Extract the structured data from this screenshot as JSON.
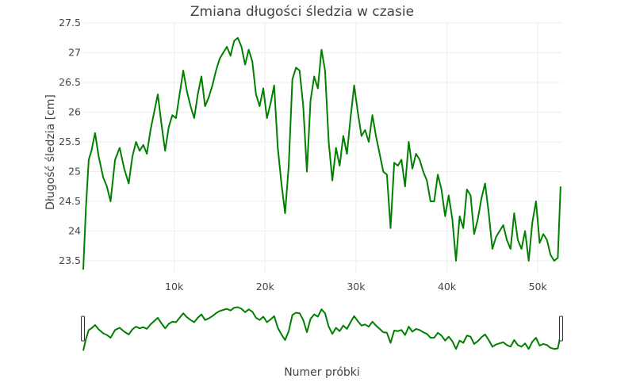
{
  "chart_data": {
    "type": "line",
    "title": "Zmiana długości śledzia w czasie",
    "xlabel": "Numer próbki",
    "ylabel": "Długość śledzia [cm]",
    "xlim": [
      0,
      52600
    ],
    "ylim": [
      23.3,
      27.5
    ],
    "x_ticks": [
      10000,
      20000,
      30000,
      40000,
      50000
    ],
    "x_tick_labels": [
      "10k",
      "20k",
      "30k",
      "40k",
      "50k"
    ],
    "y_ticks": [
      23.5,
      24,
      24.5,
      25,
      25.5,
      26,
      26.5,
      27,
      27.5
    ],
    "y_tick_labels": [
      "23.5",
      "24",
      "24.5",
      "25",
      "25.5",
      "26",
      "26.5",
      "27",
      "27.5"
    ],
    "grid": true,
    "range_slider": true,
    "line_color": "#008000",
    "series": [
      {
        "x": [
          0,
          300,
          600,
          900,
          1300,
          1700,
          2200,
          2600,
          3000,
          3500,
          4000,
          4500,
          5000,
          5400,
          5800,
          6200,
          6600,
          7000,
          7400,
          7800,
          8200,
          8600,
          9000,
          9400,
          9800,
          10200,
          10600,
          11000,
          11400,
          11800,
          12200,
          12600,
          13000,
          13400,
          13800,
          14200,
          14600,
          15000,
          15400,
          15800,
          16200,
          16600,
          17000,
          17400,
          17800,
          18200,
          18600,
          19000,
          19400,
          19800,
          20200,
          20600,
          21000,
          21400,
          21800,
          22200,
          22600,
          23000,
          23400,
          23800,
          24200,
          24600,
          25000,
          25400,
          25800,
          26200,
          26600,
          27000,
          27400,
          27800,
          28200,
          28600,
          29000,
          29400,
          29800,
          30200,
          30600,
          31000,
          31400,
          31800,
          32200,
          32600,
          33000,
          33400,
          33800,
          34200,
          34600,
          35000,
          35400,
          35800,
          36200,
          36600,
          37000,
          37400,
          37800,
          38200,
          38600,
          39000,
          39400,
          39800,
          40200,
          40600,
          41000,
          41400,
          41800,
          42200,
          42600,
          43000,
          43400,
          43800,
          44200,
          44600,
          45000,
          45400,
          45800,
          46200,
          46600,
          47000,
          47400,
          47800,
          48200,
          48600,
          49000,
          49400,
          49800,
          50200,
          50600,
          51000,
          51400,
          51800,
          52200,
          52500
        ],
        "y": [
          23.35,
          24.4,
          25.2,
          25.35,
          25.65,
          25.25,
          24.9,
          24.75,
          24.5,
          25.2,
          25.4,
          25.05,
          24.8,
          25.25,
          25.5,
          25.35,
          25.45,
          25.3,
          25.7,
          26.0,
          26.3,
          25.8,
          25.35,
          25.75,
          25.95,
          25.9,
          26.3,
          26.7,
          26.35,
          26.1,
          25.9,
          26.3,
          26.6,
          26.1,
          26.25,
          26.45,
          26.7,
          26.9,
          27.0,
          27.1,
          26.95,
          27.2,
          27.25,
          27.1,
          26.8,
          27.05,
          26.85,
          26.3,
          26.1,
          26.4,
          25.9,
          26.15,
          26.45,
          25.4,
          24.8,
          24.3,
          25.1,
          26.55,
          26.75,
          26.7,
          26.1,
          25.0,
          26.2,
          26.6,
          26.4,
          27.05,
          26.7,
          25.5,
          24.85,
          25.4,
          25.1,
          25.6,
          25.3,
          25.9,
          26.45,
          26.0,
          25.6,
          25.7,
          25.5,
          25.95,
          25.6,
          25.3,
          25.0,
          24.95,
          24.05,
          25.15,
          25.1,
          25.2,
          24.75,
          25.5,
          25.05,
          25.3,
          25.2,
          25.0,
          24.85,
          24.5,
          24.5,
          24.95,
          24.7,
          24.25,
          24.6,
          24.2,
          23.5,
          24.25,
          24.05,
          24.7,
          24.6,
          23.95,
          24.2,
          24.55,
          24.8,
          24.3,
          23.7,
          23.9,
          24.0,
          24.1,
          23.85,
          23.7,
          24.3,
          23.85,
          23.7,
          24.0,
          23.5,
          24.15,
          24.5,
          23.8,
          23.95,
          23.85,
          23.6,
          23.5,
          23.55,
          24.75
        ]
      }
    ]
  }
}
